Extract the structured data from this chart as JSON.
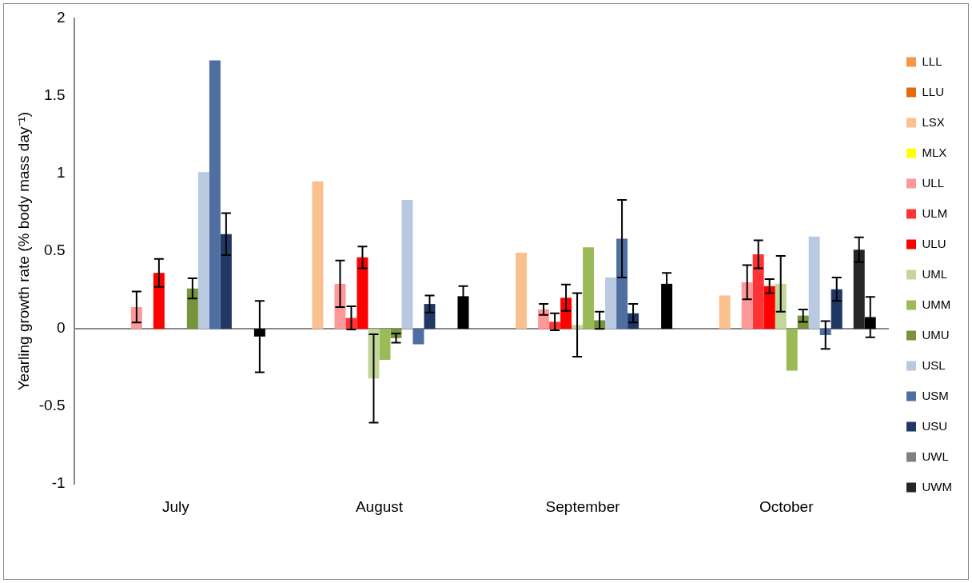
{
  "chart_data": {
    "type": "bar",
    "ylabel": "Yearling growth rate (% body mass day⁻¹)",
    "categories": [
      "July",
      "August",
      "September",
      "October"
    ],
    "ylim": [
      -1,
      2
    ],
    "yticks": [
      -1,
      -0.5,
      0,
      0.5,
      1,
      1.5,
      2
    ],
    "legend": "right",
    "series": [
      {
        "name": "LLL",
        "color": "#f79646",
        "values": [
          null,
          null,
          null,
          null
        ]
      },
      {
        "name": "LLU",
        "color": "#e36c09",
        "values": [
          null,
          null,
          null,
          null
        ]
      },
      {
        "name": "LSX",
        "color": "#fac090",
        "values": [
          null,
          0.95,
          0.49,
          0.215
        ]
      },
      {
        "name": "MLX",
        "color": "#ffff00",
        "values": [
          null,
          null,
          null,
          null
        ]
      },
      {
        "name": "ULL",
        "color": "#ff9999",
        "values": [
          0.14,
          0.29,
          0.125,
          0.3
        ],
        "errors": [
          0.1,
          0.15,
          0.035,
          0.11
        ]
      },
      {
        "name": "ULM",
        "color": "#ff3333",
        "values": [
          null,
          0.07,
          0.045,
          0.48
        ],
        "errors": [
          null,
          0.075,
          0.055,
          0.09
        ]
      },
      {
        "name": "ULU",
        "color": "#ff0000",
        "values": [
          0.36,
          0.46,
          0.2,
          0.275
        ],
        "errors": [
          0.09,
          0.07,
          0.085,
          0.045
        ]
      },
      {
        "name": "UML",
        "color": "#c3d69b",
        "values": [
          null,
          -0.32,
          0.025,
          0.29
        ],
        "errors": [
          null,
          0.285,
          0.205,
          0.18
        ]
      },
      {
        "name": "UMM",
        "color": "#9bbb59",
        "values": [
          null,
          -0.2,
          0.525,
          -0.27
        ]
      },
      {
        "name": "UMU",
        "color": "#77933c",
        "values": [
          0.26,
          -0.06,
          0.055,
          0.085
        ],
        "errors": [
          0.065,
          0.03,
          0.055,
          0.04
        ]
      },
      {
        "name": "USL",
        "color": "#b9c9e0",
        "values": [
          1.01,
          0.83,
          0.33,
          0.595
        ]
      },
      {
        "name": "USM",
        "color": "#4f6fa0",
        "values": [
          1.73,
          -0.1,
          0.58,
          -0.04
        ],
        "errors": [
          null,
          null,
          0.25,
          0.09
        ]
      },
      {
        "name": "USU",
        "color": "#1f3864",
        "values": [
          0.61,
          0.16,
          0.1,
          0.255
        ],
        "errors": [
          0.135,
          0.055,
          0.06,
          0.075
        ]
      },
      {
        "name": "UWL",
        "color": "#7f7f7f",
        "values": [
          null,
          null,
          null,
          null
        ]
      },
      {
        "name": "UWM",
        "color": "#262626",
        "values": [
          null,
          null,
          null,
          0.51
        ],
        "errors": [
          null,
          null,
          null,
          0.08
        ]
      },
      {
        "color": "#000000",
        "values": [
          -0.05,
          0.21,
          0.29,
          0.075
        ],
        "errors": [
          0.23,
          0.065,
          0.07,
          0.13
        ]
      }
    ]
  }
}
